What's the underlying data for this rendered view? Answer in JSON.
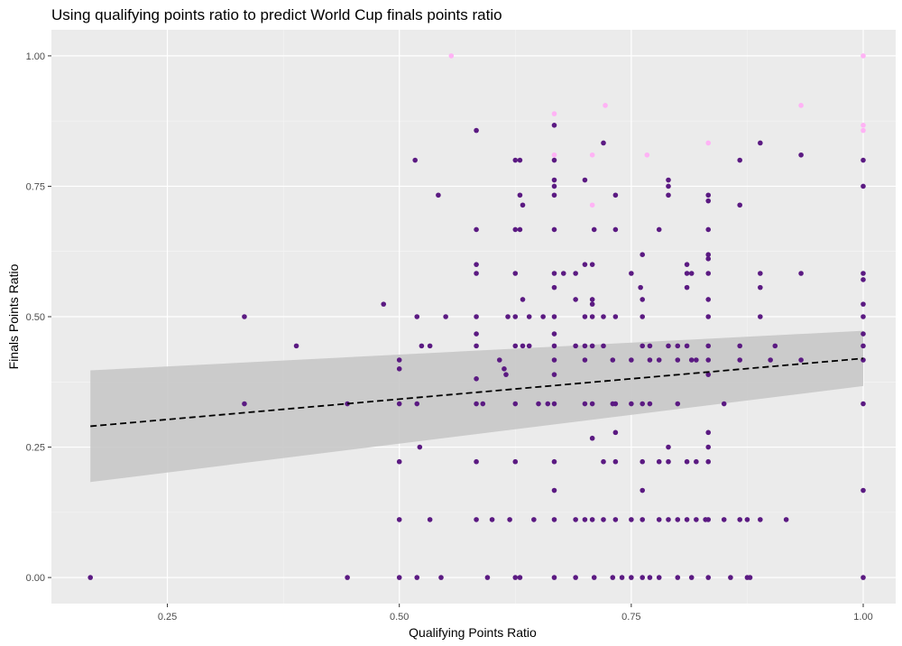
{
  "chart_data": {
    "type": "scatter",
    "title": "Using qualifying points ratio to predict World Cup finals points ratio",
    "xlabel": "Qualifying Points Ratio",
    "ylabel": "Finals Points Ratio",
    "xlim": [
      0.125,
      1.035
    ],
    "ylim": [
      -0.05,
      1.05
    ],
    "x_ticks": [
      "0.25",
      "0.50",
      "0.75",
      "1.00"
    ],
    "y_ticks": [
      "0.00",
      "0.25",
      "0.50",
      "0.75",
      "1.00"
    ],
    "grid": true,
    "legend": "none",
    "colors": {
      "panel_background": "#ebebeb",
      "grid_major": "#ffffff",
      "grid_minor": "#f5f5f5",
      "point": "#5b1a82",
      "point_highlight": "#ffb3f5",
      "trend_line": "#000000",
      "confidence_band": "#c8c8c8"
    },
    "trend_line": {
      "style": "dashed",
      "x": [
        0.167,
        1.0
      ],
      "y": [
        0.29,
        0.42
      ],
      "ci_lower": [
        0.183,
        0.367
      ],
      "ci_upper": [
        0.397,
        0.473
      ]
    },
    "points": [
      [
        0.167,
        0.0
      ],
      [
        0.333,
        0.5
      ],
      [
        0.333,
        0.333
      ],
      [
        0.389,
        0.444
      ],
      [
        0.444,
        0.333
      ],
      [
        0.444,
        0.0
      ],
      [
        0.483,
        0.524
      ],
      [
        0.5,
        0.417
      ],
      [
        0.5,
        0.4
      ],
      [
        0.5,
        0.333
      ],
      [
        0.5,
        0.222
      ],
      [
        0.5,
        0.111
      ],
      [
        0.5,
        0.0
      ],
      [
        0.517,
        0.8
      ],
      [
        0.519,
        0.5
      ],
      [
        0.519,
        0.333
      ],
      [
        0.519,
        0.0
      ],
      [
        0.524,
        0.444
      ],
      [
        0.522,
        0.25
      ],
      [
        0.533,
        0.444
      ],
      [
        0.533,
        0.111
      ],
      [
        0.542,
        0.733
      ],
      [
        0.545,
        0.0
      ],
      [
        0.55,
        0.5
      ],
      [
        0.583,
        0.857
      ],
      [
        0.583,
        0.667
      ],
      [
        0.583,
        0.6
      ],
      [
        0.583,
        0.583
      ],
      [
        0.583,
        0.5
      ],
      [
        0.583,
        0.467
      ],
      [
        0.583,
        0.444
      ],
      [
        0.583,
        0.381
      ],
      [
        0.583,
        0.333
      ],
      [
        0.583,
        0.222
      ],
      [
        0.583,
        0.111
      ],
      [
        0.59,
        0.333
      ],
      [
        0.595,
        0.0
      ],
      [
        0.6,
        0.111
      ],
      [
        0.608,
        0.417
      ],
      [
        0.613,
        0.4
      ],
      [
        0.617,
        0.5
      ],
      [
        0.615,
        0.389
      ],
      [
        0.619,
        0.111
      ],
      [
        0.625,
        0.8
      ],
      [
        0.625,
        0.667
      ],
      [
        0.625,
        0.583
      ],
      [
        0.625,
        0.5
      ],
      [
        0.625,
        0.444
      ],
      [
        0.625,
        0.333
      ],
      [
        0.625,
        0.222
      ],
      [
        0.625,
        0.0
      ],
      [
        0.63,
        0.8
      ],
      [
        0.63,
        0.733
      ],
      [
        0.63,
        0.667
      ],
      [
        0.63,
        0.0
      ],
      [
        0.633,
        0.714
      ],
      [
        0.633,
        0.444
      ],
      [
        0.633,
        0.533
      ],
      [
        0.64,
        0.5
      ],
      [
        0.64,
        0.444
      ],
      [
        0.645,
        0.111
      ],
      [
        0.65,
        0.333
      ],
      [
        0.655,
        0.5
      ],
      [
        0.66,
        0.333
      ],
      [
        0.667,
        0.867
      ],
      [
        0.667,
        0.8
      ],
      [
        0.667,
        0.762
      ],
      [
        0.667,
        0.75
      ],
      [
        0.667,
        0.733
      ],
      [
        0.667,
        0.667
      ],
      [
        0.667,
        0.583
      ],
      [
        0.667,
        0.556
      ],
      [
        0.667,
        0.5
      ],
      [
        0.667,
        0.467
      ],
      [
        0.667,
        0.444
      ],
      [
        0.667,
        0.417
      ],
      [
        0.667,
        0.389
      ],
      [
        0.667,
        0.333
      ],
      [
        0.667,
        0.222
      ],
      [
        0.667,
        0.167
      ],
      [
        0.667,
        0.111
      ],
      [
        0.667,
        0.0
      ],
      [
        0.677,
        0.583
      ],
      [
        0.69,
        0.583
      ],
      [
        0.69,
        0.533
      ],
      [
        0.69,
        0.444
      ],
      [
        0.69,
        0.111
      ],
      [
        0.69,
        0.0
      ],
      [
        0.7,
        0.762
      ],
      [
        0.7,
        0.6
      ],
      [
        0.7,
        0.5
      ],
      [
        0.7,
        0.444
      ],
      [
        0.7,
        0.417
      ],
      [
        0.7,
        0.333
      ],
      [
        0.7,
        0.111
      ],
      [
        0.708,
        0.6
      ],
      [
        0.708,
        0.533
      ],
      [
        0.708,
        0.524
      ],
      [
        0.708,
        0.5
      ],
      [
        0.708,
        0.444
      ],
      [
        0.708,
        0.333
      ],
      [
        0.708,
        0.267
      ],
      [
        0.708,
        0.111
      ],
      [
        0.71,
        0.667
      ],
      [
        0.71,
        0.0
      ],
      [
        0.72,
        0.833
      ],
      [
        0.72,
        0.5
      ],
      [
        0.72,
        0.444
      ],
      [
        0.72,
        0.222
      ],
      [
        0.72,
        0.111
      ],
      [
        0.73,
        0.417
      ],
      [
        0.73,
        0.333
      ],
      [
        0.73,
        0.0
      ],
      [
        0.733,
        0.733
      ],
      [
        0.733,
        0.667
      ],
      [
        0.733,
        0.5
      ],
      [
        0.733,
        0.333
      ],
      [
        0.733,
        0.278
      ],
      [
        0.733,
        0.222
      ],
      [
        0.733,
        0.111
      ],
      [
        0.74,
        0.0
      ],
      [
        0.75,
        0.583
      ],
      [
        0.75,
        0.417
      ],
      [
        0.75,
        0.333
      ],
      [
        0.75,
        0.111
      ],
      [
        0.75,
        0.0
      ],
      [
        0.76,
        0.556
      ],
      [
        0.762,
        0.619
      ],
      [
        0.762,
        0.533
      ],
      [
        0.762,
        0.5
      ],
      [
        0.762,
        0.444
      ],
      [
        0.762,
        0.333
      ],
      [
        0.762,
        0.222
      ],
      [
        0.762,
        0.167
      ],
      [
        0.762,
        0.111
      ],
      [
        0.762,
        0.0
      ],
      [
        0.77,
        0.444
      ],
      [
        0.77,
        0.417
      ],
      [
        0.77,
        0.333
      ],
      [
        0.77,
        0.0
      ],
      [
        0.78,
        0.667
      ],
      [
        0.78,
        0.417
      ],
      [
        0.78,
        0.222
      ],
      [
        0.78,
        0.111
      ],
      [
        0.78,
        0.0
      ],
      [
        0.79,
        0.762
      ],
      [
        0.79,
        0.75
      ],
      [
        0.79,
        0.733
      ],
      [
        0.79,
        0.444
      ],
      [
        0.79,
        0.25
      ],
      [
        0.79,
        0.222
      ],
      [
        0.79,
        0.111
      ],
      [
        0.8,
        0.444
      ],
      [
        0.8,
        0.417
      ],
      [
        0.8,
        0.333
      ],
      [
        0.8,
        0.111
      ],
      [
        0.8,
        0.0
      ],
      [
        0.81,
        0.6
      ],
      [
        0.81,
        0.583
      ],
      [
        0.81,
        0.556
      ],
      [
        0.81,
        0.444
      ],
      [
        0.81,
        0.222
      ],
      [
        0.81,
        0.111
      ],
      [
        0.815,
        0.583
      ],
      [
        0.815,
        0.417
      ],
      [
        0.815,
        0.0
      ],
      [
        0.82,
        0.417
      ],
      [
        0.82,
        0.222
      ],
      [
        0.82,
        0.111
      ],
      [
        0.83,
        0.111
      ],
      [
        0.833,
        0.733
      ],
      [
        0.833,
        0.722
      ],
      [
        0.833,
        0.667
      ],
      [
        0.833,
        0.619
      ],
      [
        0.833,
        0.611
      ],
      [
        0.833,
        0.583
      ],
      [
        0.833,
        0.533
      ],
      [
        0.833,
        0.5
      ],
      [
        0.833,
        0.444
      ],
      [
        0.833,
        0.417
      ],
      [
        0.833,
        0.389
      ],
      [
        0.833,
        0.278
      ],
      [
        0.833,
        0.25
      ],
      [
        0.833,
        0.222
      ],
      [
        0.833,
        0.111
      ],
      [
        0.833,
        0.0
      ],
      [
        0.85,
        0.333
      ],
      [
        0.85,
        0.111
      ],
      [
        0.857,
        0.0
      ],
      [
        0.867,
        0.8
      ],
      [
        0.867,
        0.714
      ],
      [
        0.867,
        0.444
      ],
      [
        0.867,
        0.417
      ],
      [
        0.867,
        0.111
      ],
      [
        0.875,
        0.111
      ],
      [
        0.875,
        0.0
      ],
      [
        0.878,
        0.0
      ],
      [
        0.889,
        0.833
      ],
      [
        0.889,
        0.583
      ],
      [
        0.889,
        0.556
      ],
      [
        0.889,
        0.5
      ],
      [
        0.889,
        0.111
      ],
      [
        0.9,
        0.417
      ],
      [
        0.905,
        0.444
      ],
      [
        0.917,
        0.111
      ],
      [
        0.933,
        0.81
      ],
      [
        0.933,
        0.583
      ],
      [
        0.933,
        0.417
      ],
      [
        1.0,
        0.8
      ],
      [
        1.0,
        0.75
      ],
      [
        1.0,
        0.583
      ],
      [
        1.0,
        0.571
      ],
      [
        1.0,
        0.524
      ],
      [
        1.0,
        0.5
      ],
      [
        1.0,
        0.467
      ],
      [
        1.0,
        0.444
      ],
      [
        1.0,
        0.417
      ],
      [
        1.0,
        0.333
      ],
      [
        1.0,
        0.167
      ],
      [
        1.0,
        0.0
      ]
    ],
    "highlight_points": [
      [
        0.556,
        1.0
      ],
      [
        0.667,
        0.889
      ],
      [
        0.667,
        0.81
      ],
      [
        0.708,
        0.81
      ],
      [
        0.708,
        0.714
      ],
      [
        0.722,
        0.905
      ],
      [
        0.767,
        0.81
      ],
      [
        0.833,
        0.833
      ],
      [
        0.933,
        0.905
      ],
      [
        1.0,
        1.0
      ],
      [
        1.0,
        0.867
      ],
      [
        1.0,
        0.857
      ]
    ]
  }
}
